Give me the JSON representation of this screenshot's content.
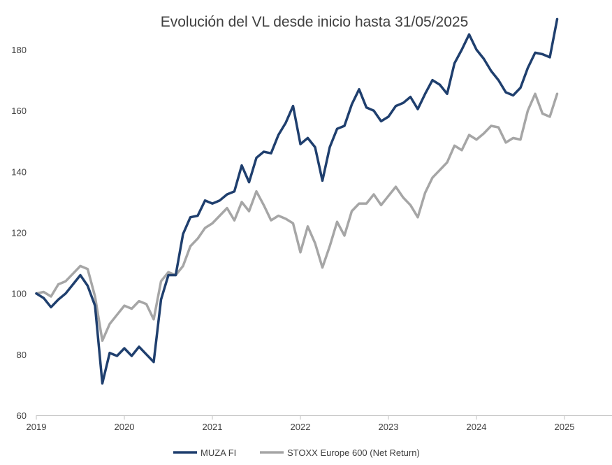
{
  "chart_data": {
    "type": "line",
    "title": "Evolución del VL desde inicio hasta 31/05/2025",
    "xlabel": "",
    "ylabel": "",
    "xlim": [
      2019.0,
      2025.55
    ],
    "ylim": [
      60,
      190
    ],
    "yticks": [
      60,
      80,
      100,
      120,
      140,
      160,
      180
    ],
    "xticks": [
      2019,
      2020,
      2021,
      2022,
      2023,
      2024,
      2025
    ],
    "xtick_labels": [
      "2019",
      "2020",
      "2021",
      "2022",
      "2023",
      "2024",
      "2025"
    ],
    "grid": false,
    "legend_position": "bottom",
    "x_step_months": 1,
    "x_start": 2019.0,
    "series": [
      {
        "name": "MUZA FI",
        "color": "#1f3f6e",
        "values": [
          100,
          98.5,
          95.5,
          98,
          100,
          103,
          106,
          102.5,
          96,
          70.5,
          80.5,
          79.5,
          82,
          79.5,
          82.5,
          80,
          77.5,
          98,
          106,
          106,
          119.5,
          125,
          125.5,
          130.5,
          129.5,
          130.5,
          132.5,
          133.5,
          142,
          136.5,
          144.5,
          146.5,
          146,
          152,
          156,
          161.5,
          149,
          151,
          148,
          137,
          148,
          154,
          155,
          162,
          167,
          161,
          160,
          156.5,
          158,
          161.5,
          162.5,
          164.5,
          160.5,
          165.5,
          170,
          168.5,
          165.5,
          175.5,
          180,
          185,
          180,
          177,
          173,
          170,
          166,
          165,
          167.5,
          174,
          179,
          178.5,
          177.5,
          190
        ]
      },
      {
        "name": "STOXX Europe 600 (Net Return)",
        "color": "#a6a6a6",
        "values": [
          100,
          100.5,
          99,
          103,
          104,
          106.5,
          109,
          108,
          99,
          84.5,
          90,
          93,
          96,
          95,
          97.5,
          96.5,
          91.5,
          104,
          107,
          106,
          109,
          115.5,
          118,
          121.5,
          123,
          125.5,
          128,
          124,
          130,
          127,
          133.5,
          129,
          124,
          125.5,
          124.5,
          123,
          113.5,
          122,
          116.5,
          108.5,
          115.5,
          123.5,
          119,
          127,
          129.5,
          129.5,
          132.5,
          129,
          132,
          135,
          131.5,
          129,
          125,
          133,
          138,
          140.5,
          143,
          148.5,
          147,
          152,
          150.5,
          152.5,
          155,
          154.5,
          149.5,
          151,
          150.5,
          160,
          165.5,
          159,
          158,
          165.5
        ]
      }
    ]
  }
}
